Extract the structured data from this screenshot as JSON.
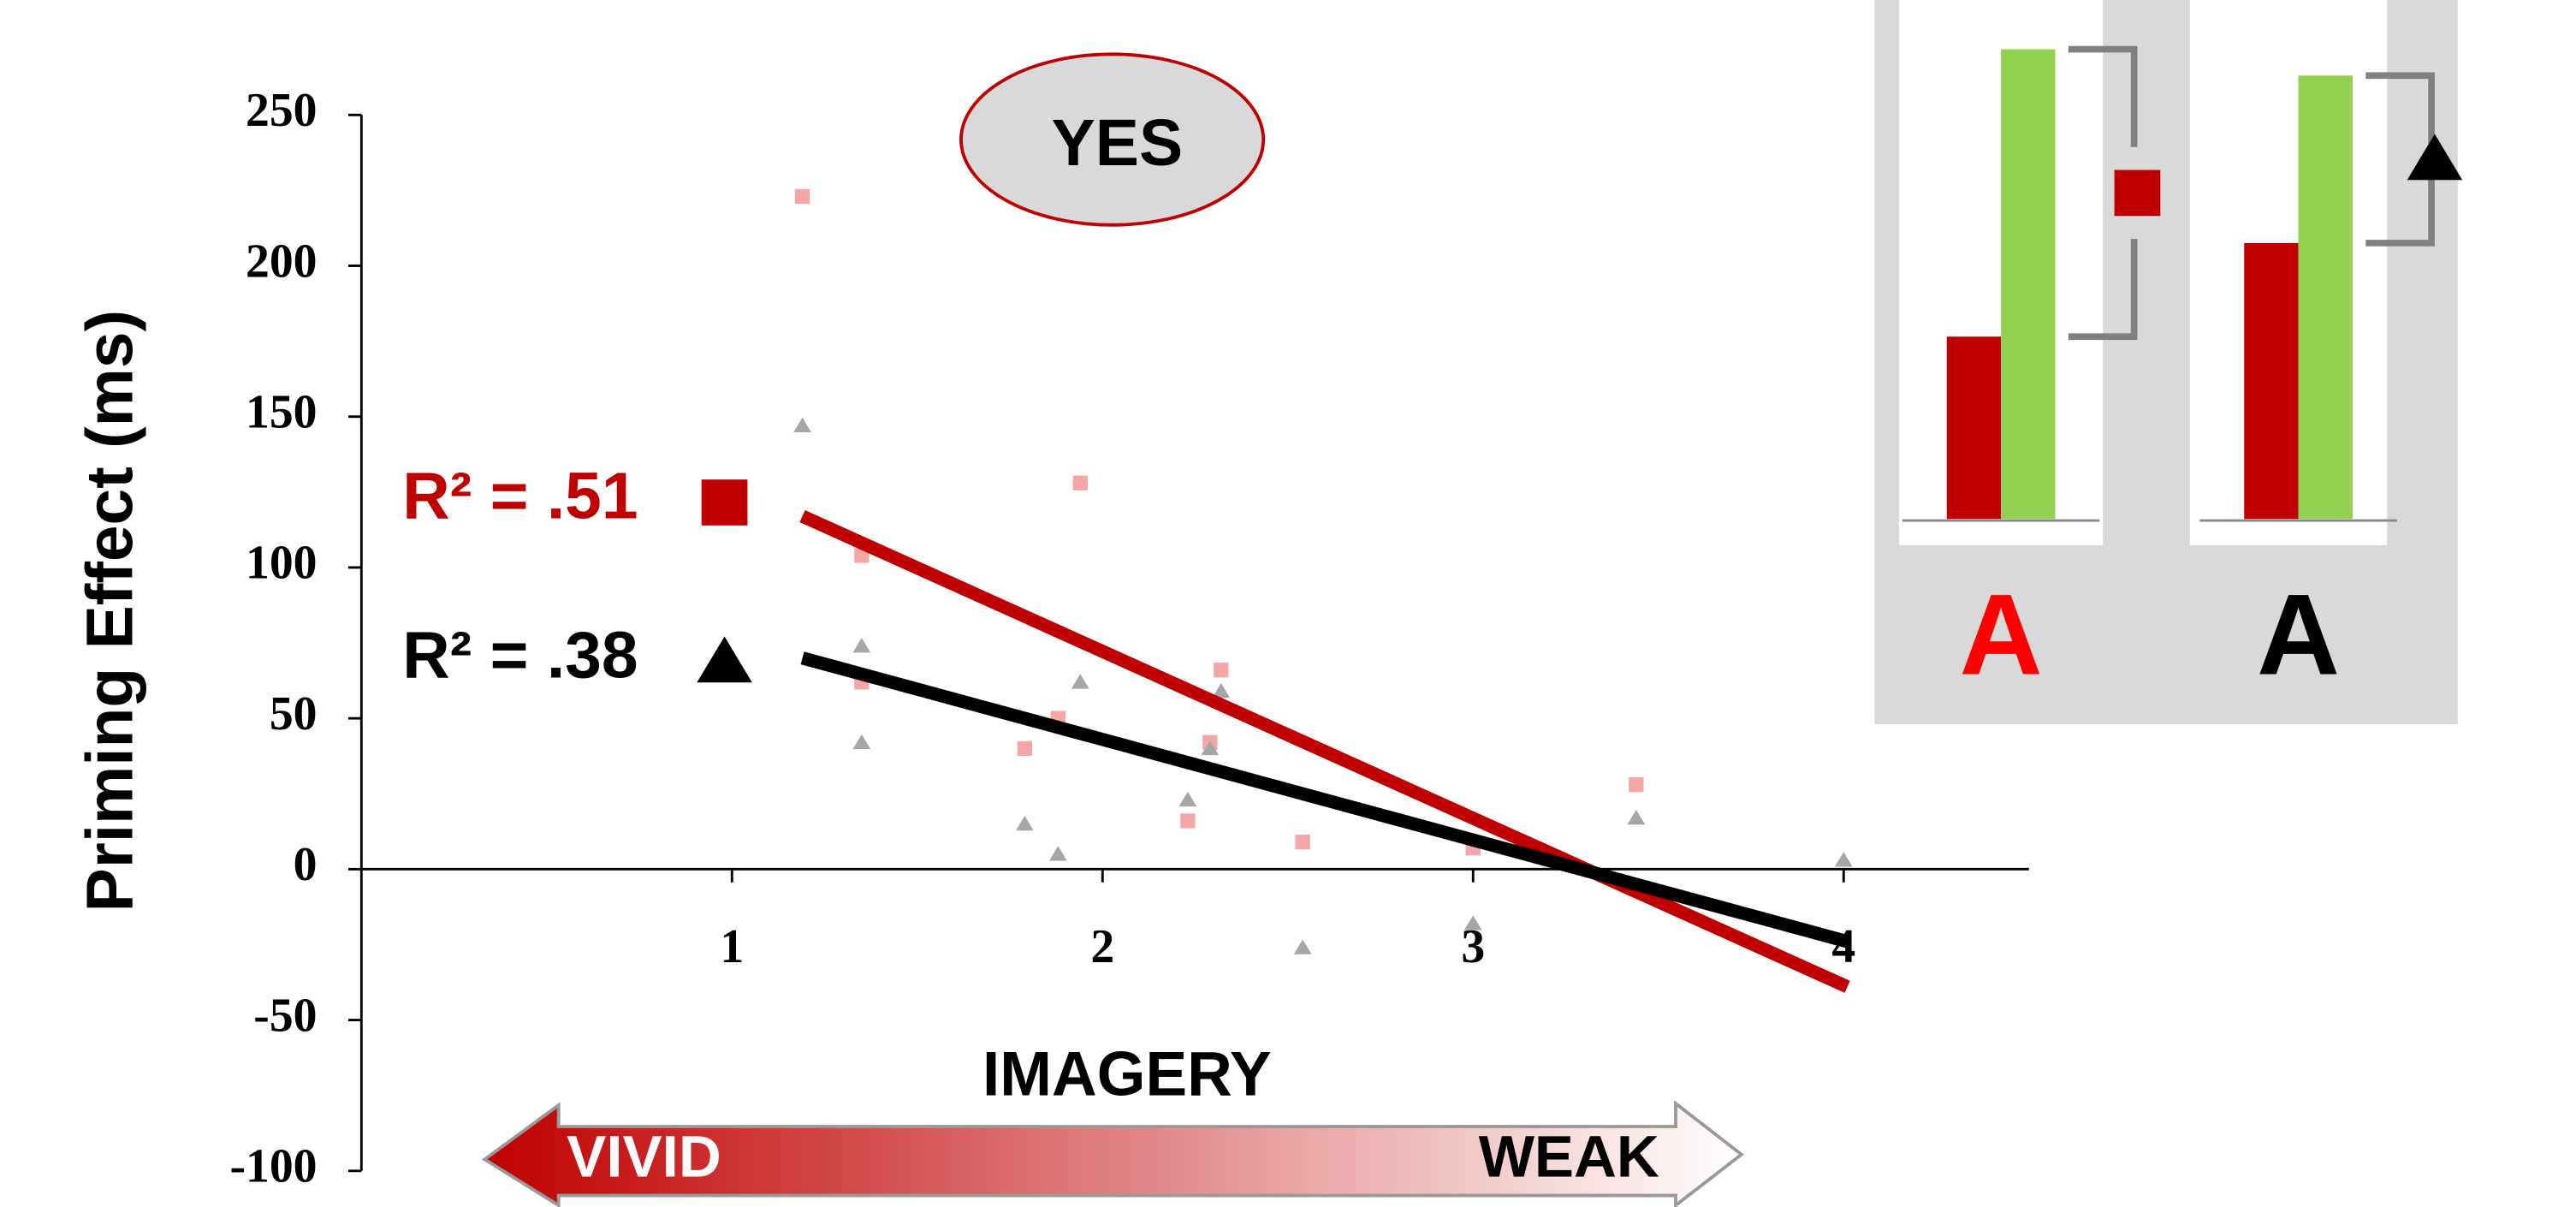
{
  "chart_data": [
    {
      "type": "scatter",
      "badge": "YES",
      "ylabel": "Priming Effect (ms)",
      "xlabel": "IMAGERY",
      "scale_left": "VIVID",
      "scale_right": "WEAK",
      "xlim": [
        0,
        4.5
      ],
      "xticks": [
        1,
        2,
        3,
        4
      ],
      "ylim": [
        -100,
        250
      ],
      "yticks": [
        -100,
        -50,
        0,
        50,
        100,
        150,
        200,
        250
      ],
      "series": [
        {
          "name": "R² = .51",
          "color": "#c00000",
          "point_color": "#f4a6a6",
          "marker": "square",
          "x": [
            1.19,
            1.35,
            1.35,
            1.79,
            1.88,
            1.94,
            2.23,
            2.29,
            2.32,
            2.54,
            3.0,
            3.44
          ],
          "values": [
            223,
            104,
            62,
            40,
            50,
            128,
            16,
            42,
            66,
            9,
            7,
            28
          ],
          "fit": {
            "x": [
              1.19,
              4.01
            ],
            "y": [
              117,
              -39
            ]
          }
        },
        {
          "name": "R² = .38",
          "color": "#000000",
          "point_color": "#a6a6a6",
          "marker": "triangle",
          "x": [
            1.19,
            1.35,
            1.35,
            1.79,
            1.88,
            1.94,
            2.23,
            2.29,
            2.32,
            2.54,
            3.0,
            3.44,
            4.0
          ],
          "values": [
            147,
            74,
            42,
            15,
            5,
            62,
            23,
            40,
            59,
            -26,
            -18,
            17,
            3
          ],
          "fit": {
            "x": [
              1.19,
              4.01
            ],
            "y": [
              70,
              -24
            ]
          }
        }
      ]
    },
    {
      "type": "bar",
      "label": "A",
      "label_color": "#ff0000",
      "marker": "square",
      "ylim": [
        0,
        300
      ],
      "values": [
        111,
        286
      ],
      "colors": [
        "#c00000",
        "#92d050"
      ]
    },
    {
      "type": "bar",
      "label": "A",
      "label_color": "#000000",
      "marker": "triangle",
      "ylim": [
        0,
        300
      ],
      "values": [
        168,
        270
      ],
      "colors": [
        "#c00000",
        "#92d050"
      ]
    }
  ]
}
